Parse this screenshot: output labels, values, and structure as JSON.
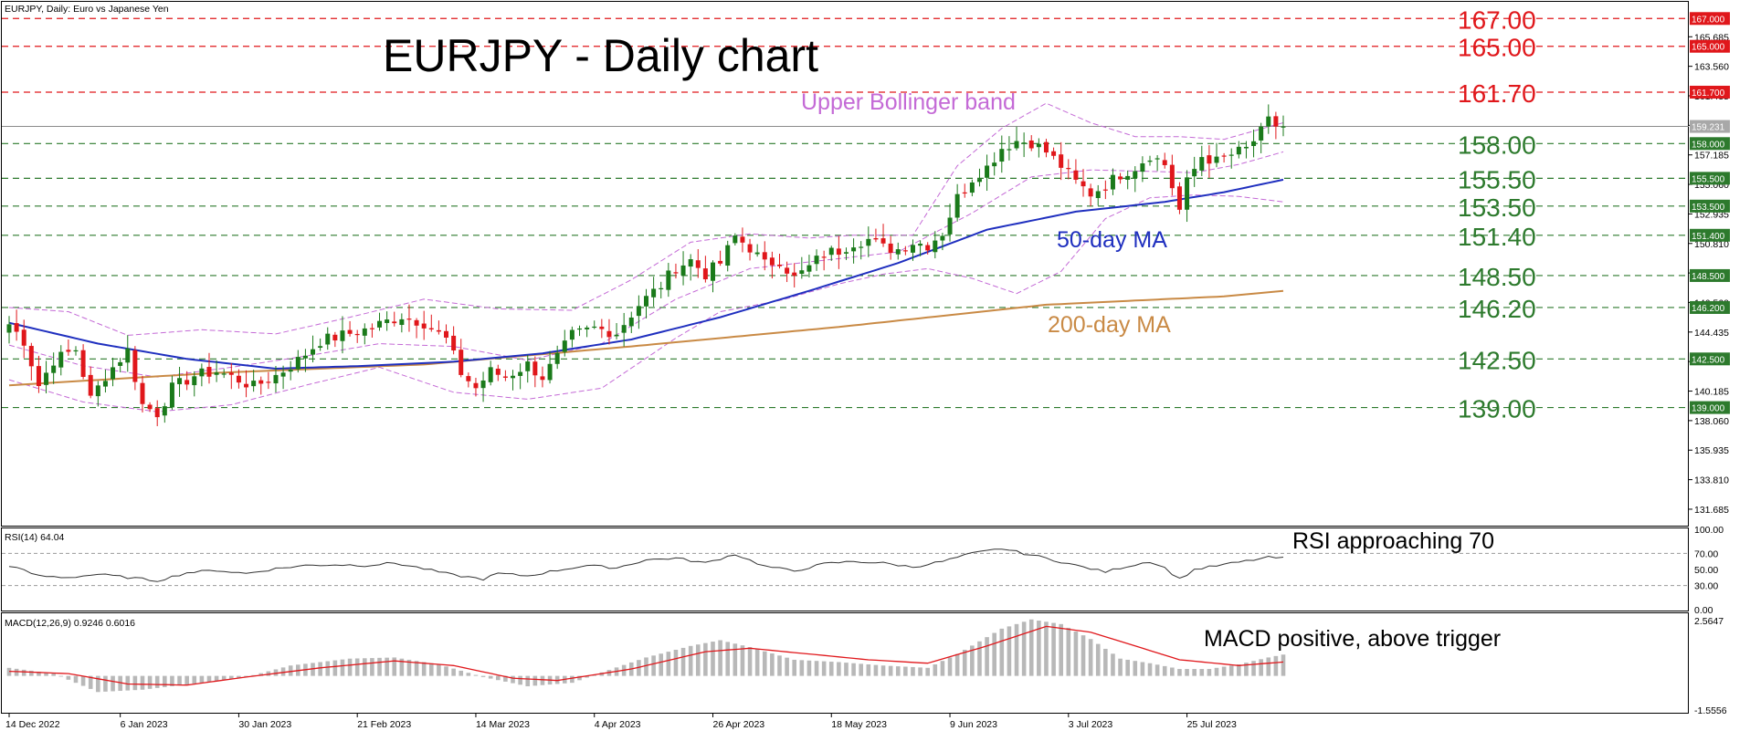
{
  "window": {
    "header": "EURJPY, Daily:  Euro vs Japanese Yen",
    "title": "EURJPY - Daily chart"
  },
  "colors": {
    "bull": "#1a7a1a",
    "bear": "#e0171b",
    "ma50": "#1f2fbf",
    "ma200": "#c98a45",
    "bollinger": "#c46ad6",
    "red_level": "#e0171b",
    "green_level": "#2d7a2d",
    "current_price": "#8a8a8a",
    "rsi_line": "#333333",
    "macd_hist": "#b8b8b8",
    "macd_signal": "#e0171b"
  },
  "annotations": {
    "upper_bollinger": "Upper Bollinger band",
    "ma50": "50-day MA",
    "ma200": "200-day MA",
    "rsi": "RSI approaching 70",
    "macd": "MACD positive, above trigger"
  },
  "chart_data": {
    "type": "candlestick",
    "price_axis": {
      "ylim": [
        130.5,
        168.2
      ],
      "ticks": [
        "165.685",
        "163.560",
        "161.435",
        "159.310",
        "157.185",
        "155.060",
        "152.935",
        "150.810",
        "148.685",
        "146.560",
        "144.435",
        "142.310",
        "140.185",
        "138.060",
        "135.935",
        "133.810",
        "131.685"
      ]
    },
    "x_axis": {
      "labels": [
        "14 Dec 2022",
        "6 Jan 2023",
        "30 Jan 2023",
        "21 Feb 2023",
        "14 Mar 2023",
        "4 Apr 2023",
        "26 Apr 2023",
        "18 May 2023",
        "9 Jun 2023",
        "3 Jul 2023",
        "25 Jul 2023"
      ],
      "label_index": [
        0,
        15,
        31,
        47,
        63,
        79,
        95,
        111,
        127,
        143,
        159
      ]
    },
    "levels": [
      {
        "value": 167.0,
        "label": "167.00",
        "tag": "167.000",
        "color": "red"
      },
      {
        "value": 165.0,
        "label": "165.00",
        "tag": "165.000",
        "color": "red"
      },
      {
        "value": 161.7,
        "label": "161.70",
        "tag": "161.700",
        "color": "red"
      },
      {
        "value": 158.0,
        "label": "158.00",
        "tag": "158.000",
        "color": "green"
      },
      {
        "value": 155.5,
        "label": "155.50",
        "tag": "155.500",
        "color": "green"
      },
      {
        "value": 153.5,
        "label": "153.50",
        "tag": "153.500",
        "color": "green"
      },
      {
        "value": 151.4,
        "label": "151.40",
        "tag": "151.400",
        "color": "green"
      },
      {
        "value": 148.5,
        "label": "148.50",
        "tag": "148.500",
        "color": "green"
      },
      {
        "value": 146.2,
        "label": "146.20",
        "tag": "146.200",
        "color": "green"
      },
      {
        "value": 142.5,
        "label": "142.50",
        "tag": "142.500",
        "color": "green"
      },
      {
        "value": 139.0,
        "label": "139.00",
        "tag": "139.000",
        "color": "green"
      }
    ],
    "current_price": {
      "value": 159.231,
      "tag": "159.231"
    },
    "close_anchors": [
      [
        0,
        145.0
      ],
      [
        2,
        143.8
      ],
      [
        4,
        140.6
      ],
      [
        6,
        142.4
      ],
      [
        9,
        143.2
      ],
      [
        11,
        139.6
      ],
      [
        13,
        141.3
      ],
      [
        16,
        143.1
      ],
      [
        18,
        139.2
      ],
      [
        20,
        138.6
      ],
      [
        22,
        140.4
      ],
      [
        25,
        141.3
      ],
      [
        28,
        141.6
      ],
      [
        31,
        141.0
      ],
      [
        33,
        140.5
      ],
      [
        36,
        141.3
      ],
      [
        39,
        142.4
      ],
      [
        42,
        143.8
      ],
      [
        45,
        144.2
      ],
      [
        48,
        144.6
      ],
      [
        50,
        145.0
      ],
      [
        53,
        145.6
      ],
      [
        56,
        145.1
      ],
      [
        59,
        143.9
      ],
      [
        61,
        141.5
      ],
      [
        63,
        140.4
      ],
      [
        65,
        141.6
      ],
      [
        67,
        141.2
      ],
      [
        70,
        142.1
      ],
      [
        72,
        141.2
      ],
      [
        74,
        142.6
      ],
      [
        76,
        144.2
      ],
      [
        79,
        144.7
      ],
      [
        82,
        144.4
      ],
      [
        85,
        146.4
      ],
      [
        88,
        147.8
      ],
      [
        90,
        149.1
      ],
      [
        92,
        149.6
      ],
      [
        94,
        148.6
      ],
      [
        96,
        149.4
      ],
      [
        98,
        151.3
      ],
      [
        100,
        150.5
      ],
      [
        102,
        149.3
      ],
      [
        104,
        149.6
      ],
      [
        106,
        148.3
      ],
      [
        108,
        149.1
      ],
      [
        110,
        150.1
      ],
      [
        112,
        150.3
      ],
      [
        114,
        150.9
      ],
      [
        116,
        151.1
      ],
      [
        118,
        150.5
      ],
      [
        120,
        150.4
      ],
      [
        122,
        150.9
      ],
      [
        124,
        150.7
      ],
      [
        126,
        151.6
      ],
      [
        128,
        154.1
      ],
      [
        130,
        155.5
      ],
      [
        132,
        156.3
      ],
      [
        134,
        157.7
      ],
      [
        136,
        158.2
      ],
      [
        138,
        158.1
      ],
      [
        140,
        157.4
      ],
      [
        142,
        156.4
      ],
      [
        144,
        155.2
      ],
      [
        146,
        154.4
      ],
      [
        148,
        155.0
      ],
      [
        150,
        155.8
      ],
      [
        152,
        156.3
      ],
      [
        154,
        157.2
      ],
      [
        156,
        156.5
      ],
      [
        157,
        154.9
      ],
      [
        158,
        153.2
      ],
      [
        159,
        155.2
      ],
      [
        161,
        157.1
      ],
      [
        163,
        156.7
      ],
      [
        165,
        157.2
      ],
      [
        167,
        157.6
      ],
      [
        169,
        158.8
      ],
      [
        170,
        159.6
      ],
      [
        171,
        159.3
      ],
      [
        172,
        159.23
      ]
    ],
    "ma50_anchors": [
      [
        0,
        145.1
      ],
      [
        12,
        143.6
      ],
      [
        24,
        142.5
      ],
      [
        36,
        141.8
      ],
      [
        48,
        142.0
      ],
      [
        60,
        142.3
      ],
      [
        72,
        142.9
      ],
      [
        84,
        143.9
      ],
      [
        96,
        145.5
      ],
      [
        108,
        147.4
      ],
      [
        120,
        149.4
      ],
      [
        132,
        151.8
      ],
      [
        144,
        153.1
      ],
      [
        156,
        153.8
      ],
      [
        164,
        154.5
      ],
      [
        172,
        155.4
      ]
    ],
    "ma200_anchors": [
      [
        0,
        140.6
      ],
      [
        28,
        141.5
      ],
      [
        56,
        142.1
      ],
      [
        84,
        143.4
      ],
      [
        112,
        144.8
      ],
      [
        140,
        146.4
      ],
      [
        164,
        147.0
      ],
      [
        172,
        147.4
      ]
    ],
    "bollinger_upper_anchors": [
      [
        0,
        146.2
      ],
      [
        8,
        145.9
      ],
      [
        16,
        144.2
      ],
      [
        26,
        144.6
      ],
      [
        36,
        144.3
      ],
      [
        46,
        145.5
      ],
      [
        56,
        146.8
      ],
      [
        66,
        146.1
      ],
      [
        76,
        146.0
      ],
      [
        84,
        148.2
      ],
      [
        92,
        150.9
      ],
      [
        100,
        151.5
      ],
      [
        108,
        151.2
      ],
      [
        114,
        151.4
      ],
      [
        122,
        151.4
      ],
      [
        128,
        156.4
      ],
      [
        134,
        159.1
      ],
      [
        140,
        160.9
      ],
      [
        146,
        159.5
      ],
      [
        152,
        158.5
      ],
      [
        158,
        158.5
      ],
      [
        164,
        158.3
      ],
      [
        172,
        159.5
      ]
    ],
    "bollinger_mid_anchors": [
      [
        0,
        143.5
      ],
      [
        10,
        142.0
      ],
      [
        20,
        141.2
      ],
      [
        30,
        141.9
      ],
      [
        40,
        142.7
      ],
      [
        50,
        143.6
      ],
      [
        60,
        143.4
      ],
      [
        70,
        142.4
      ],
      [
        80,
        143.6
      ],
      [
        90,
        146.8
      ],
      [
        100,
        149.0
      ],
      [
        110,
        149.6
      ],
      [
        120,
        150.2
      ],
      [
        130,
        153.0
      ],
      [
        138,
        155.6
      ],
      [
        146,
        156.1
      ],
      [
        154,
        156.0
      ],
      [
        160,
        155.9
      ],
      [
        166,
        156.5
      ],
      [
        172,
        157.4
      ]
    ],
    "bollinger_lower_anchors": [
      [
        0,
        141.0
      ],
      [
        10,
        139.4
      ],
      [
        20,
        138.7
      ],
      [
        30,
        139.2
      ],
      [
        40,
        140.6
      ],
      [
        50,
        141.9
      ],
      [
        60,
        140.1
      ],
      [
        70,
        139.6
      ],
      [
        80,
        140.4
      ],
      [
        90,
        144.0
      ],
      [
        96,
        145.9
      ],
      [
        104,
        146.7
      ],
      [
        112,
        147.9
      ],
      [
        118,
        148.6
      ],
      [
        124,
        149.0
      ],
      [
        130,
        148.3
      ],
      [
        136,
        147.2
      ],
      [
        142,
        148.8
      ],
      [
        148,
        152.6
      ],
      [
        154,
        154.1
      ],
      [
        160,
        154.3
      ],
      [
        166,
        154.2
      ],
      [
        172,
        153.8
      ]
    ],
    "rsi": {
      "label": "RSI(14) 64.04",
      "ylim": [
        0,
        100
      ],
      "ticks": [
        "100.00",
        "70.00",
        "50.00",
        "30.00",
        "0.00"
      ],
      "anchors": [
        [
          0,
          55
        ],
        [
          4,
          42
        ],
        [
          8,
          40
        ],
        [
          12,
          44
        ],
        [
          16,
          40
        ],
        [
          20,
          36
        ],
        [
          24,
          46
        ],
        [
          28,
          49
        ],
        [
          32,
          45
        ],
        [
          36,
          51
        ],
        [
          40,
          55
        ],
        [
          44,
          56
        ],
        [
          48,
          55
        ],
        [
          52,
          58
        ],
        [
          56,
          51
        ],
        [
          60,
          43
        ],
        [
          64,
          38
        ],
        [
          66,
          45
        ],
        [
          70,
          42
        ],
        [
          74,
          49
        ],
        [
          78,
          55
        ],
        [
          82,
          52
        ],
        [
          86,
          62
        ],
        [
          90,
          64
        ],
        [
          94,
          58
        ],
        [
          98,
          69
        ],
        [
          102,
          54
        ],
        [
          106,
          48
        ],
        [
          110,
          57
        ],
        [
          114,
          60
        ],
        [
          118,
          58
        ],
        [
          122,
          53
        ],
        [
          126,
          60
        ],
        [
          130,
          70
        ],
        [
          134,
          76
        ],
        [
          136,
          72
        ],
        [
          140,
          64
        ],
        [
          144,
          55
        ],
        [
          148,
          47
        ],
        [
          150,
          52
        ],
        [
          154,
          60
        ],
        [
          156,
          52
        ],
        [
          158,
          38
        ],
        [
          160,
          50
        ],
        [
          164,
          56
        ],
        [
          168,
          62
        ],
        [
          170,
          65
        ],
        [
          172,
          64.04
        ]
      ]
    },
    "macd": {
      "label": "MACD(12,26,9) 0.9246 0.6016",
      "ylim": [
        -1.6,
        2.6
      ],
      "ticks": [
        "2.5647",
        "-1.5556"
      ],
      "hist_anchors": [
        [
          0,
          0.35
        ],
        [
          6,
          0.1
        ],
        [
          12,
          -0.7
        ],
        [
          18,
          -0.6
        ],
        [
          26,
          -0.3
        ],
        [
          32,
          -0.05
        ],
        [
          38,
          0.45
        ],
        [
          46,
          0.75
        ],
        [
          52,
          0.8
        ],
        [
          58,
          0.5
        ],
        [
          64,
          -0.05
        ],
        [
          70,
          -0.45
        ],
        [
          76,
          -0.3
        ],
        [
          80,
          0.15
        ],
        [
          86,
          0.8
        ],
        [
          92,
          1.3
        ],
        [
          96,
          1.55
        ],
        [
          100,
          1.25
        ],
        [
          106,
          0.7
        ],
        [
          112,
          0.6
        ],
        [
          118,
          0.45
        ],
        [
          124,
          0.35
        ],
        [
          128,
          0.95
        ],
        [
          134,
          2.05
        ],
        [
          138,
          2.45
        ],
        [
          142,
          2.25
        ],
        [
          146,
          1.6
        ],
        [
          150,
          0.75
        ],
        [
          154,
          0.55
        ],
        [
          158,
          0.3
        ],
        [
          162,
          0.3
        ],
        [
          166,
          0.5
        ],
        [
          170,
          0.8
        ],
        [
          172,
          0.9246
        ]
      ],
      "signal_anchors": [
        [
          0,
          0.2
        ],
        [
          8,
          0.1
        ],
        [
          16,
          -0.35
        ],
        [
          24,
          -0.4
        ],
        [
          32,
          -0.05
        ],
        [
          42,
          0.35
        ],
        [
          52,
          0.65
        ],
        [
          60,
          0.45
        ],
        [
          68,
          -0.1
        ],
        [
          74,
          -0.2
        ],
        [
          84,
          0.3
        ],
        [
          94,
          1.05
        ],
        [
          100,
          1.2
        ],
        [
          108,
          0.95
        ],
        [
          116,
          0.7
        ],
        [
          124,
          0.55
        ],
        [
          132,
          1.3
        ],
        [
          140,
          2.15
        ],
        [
          146,
          1.9
        ],
        [
          152,
          1.3
        ],
        [
          158,
          0.7
        ],
        [
          166,
          0.45
        ],
        [
          172,
          0.6016
        ]
      ]
    }
  }
}
